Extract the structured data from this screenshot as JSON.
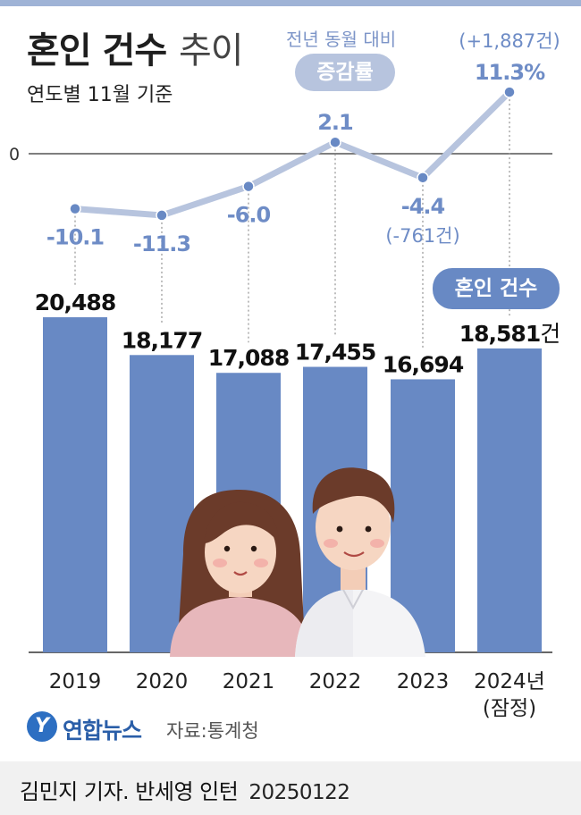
{
  "header": {
    "title_main": "혼인 건수",
    "title_sub": "추이",
    "subtitle": "연도별 11월 기준"
  },
  "legend": {
    "yoy_caption": "전년 동월 대비",
    "rate_pill": "증감률",
    "count_pill": "혼인 건수"
  },
  "chart_data": {
    "type": "bar",
    "categories": [
      "2019",
      "2020",
      "2021",
      "2022",
      "2023",
      "2024년"
    ],
    "category_note": {
      "index": 5,
      "text": "(잠정)"
    },
    "series": [
      {
        "name": "혼인 건수",
        "type": "bar",
        "values": [
          20488,
          18177,
          17088,
          17455,
          16694,
          18581
        ],
        "labels": [
          "20,488",
          "18,177",
          "17,088",
          "17,455",
          "16,694",
          "18,581"
        ],
        "unit": "건",
        "color": "#6889c4"
      },
      {
        "name": "증감률",
        "type": "line",
        "values": [
          -10.1,
          -11.3,
          -6.0,
          2.1,
          -4.4,
          11.3
        ],
        "labels": [
          "-10.1",
          "-11.3",
          "-6.0",
          "2.1",
          "-4.4",
          "11.3%"
        ],
        "color": "#b7c4de"
      }
    ],
    "annotations": [
      {
        "index": 4,
        "text": "(-761건)"
      },
      {
        "index": 5,
        "text": "(+1,887건)"
      }
    ],
    "zero_label": "0",
    "colors": {
      "bar": "#6889c4",
      "line": "#b7c4de",
      "marker": "#6889c4",
      "label": "#6e8cc6"
    }
  },
  "footer": {
    "logo_mark": "Y",
    "logo": "연합뉴스",
    "source": "자료:통계청",
    "credit": "김민지 기자. 반세영 인턴",
    "date": "20250122"
  }
}
